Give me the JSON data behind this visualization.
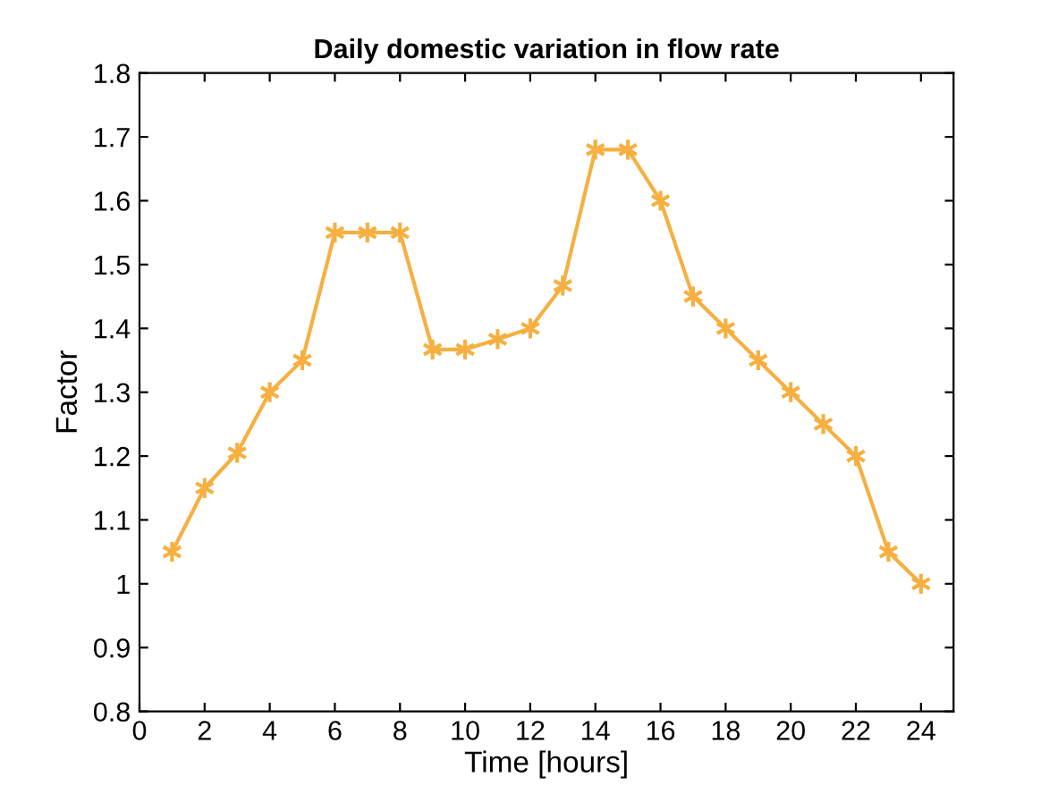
{
  "chart_data": {
    "type": "line",
    "title": "Daily domestic variation in flow rate",
    "xlabel": "Time [hours]",
    "ylabel": "Factor",
    "x": [
      1,
      2,
      3,
      4,
      5,
      6,
      7,
      8,
      9,
      10,
      11,
      12,
      13,
      14,
      15,
      16,
      17,
      18,
      19,
      20,
      21,
      22,
      23,
      24
    ],
    "series": [
      {
        "color": "#f5b041",
        "values": [
          1.05,
          1.15,
          1.205,
          1.3,
          1.35,
          1.55,
          1.55,
          1.55,
          1.367,
          1.367,
          1.383,
          1.4,
          1.467,
          1.68,
          1.68,
          1.6,
          1.45,
          1.4,
          1.35,
          1.3,
          1.25,
          1.2,
          1.05,
          1.0
        ]
      }
    ],
    "xlim": [
      0,
      25
    ],
    "xticks": [
      0,
      2,
      4,
      6,
      8,
      10,
      12,
      14,
      16,
      18,
      20,
      22,
      24
    ],
    "ylim": [
      0.8,
      1.8
    ],
    "yticks": [
      0.8,
      0.9,
      1,
      1.1,
      1.2,
      1.3,
      1.4,
      1.5,
      1.6,
      1.7,
      1.8
    ],
    "marker": "cross",
    "line_style": "solid",
    "grid": false,
    "legend": false
  }
}
